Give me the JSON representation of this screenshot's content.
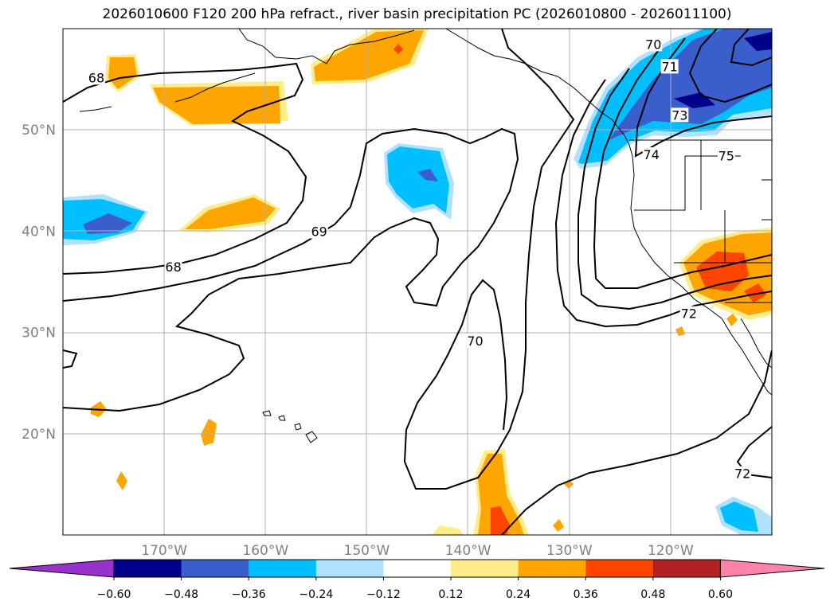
{
  "title": "2026010600 F120 200 hPa refract., river basin precipitation PC (2026010800 - 2026011100)",
  "map": {
    "projection": "PlateCarree",
    "lon_range": [
      -180,
      -110
    ],
    "lat_range": [
      10,
      60
    ],
    "grid": true,
    "lat_ticks": [
      {
        "value": 50,
        "label": "50°N"
      },
      {
        "value": 40,
        "label": "40°N"
      },
      {
        "value": 30,
        "label": "30°N"
      },
      {
        "value": 20,
        "label": "20°N"
      }
    ],
    "lon_ticks": [
      {
        "value": -170,
        "label": "170°W"
      },
      {
        "value": -160,
        "label": "160°W"
      },
      {
        "value": -150,
        "label": "150°W"
      },
      {
        "value": -140,
        "label": "140°W"
      },
      {
        "value": -130,
        "label": "130°W"
      },
      {
        "value": -120,
        "label": "120°W"
      }
    ],
    "contour_labels": [
      {
        "text": "68",
        "lon": -176.7,
        "lat": 55.1
      },
      {
        "text": "68",
        "lon": -169.1,
        "lat": 36.4
      },
      {
        "text": "69",
        "lon": -154.7,
        "lat": 39.9
      },
      {
        "text": "70",
        "lon": -139.3,
        "lat": 29.1
      },
      {
        "text": "70",
        "lon": -121.7,
        "lat": 58.4
      },
      {
        "text": "71",
        "lon": -120.1,
        "lat": 56.2
      },
      {
        "text": "73",
        "lon": -119.1,
        "lat": 51.4
      },
      {
        "text": "74",
        "lon": -121.9,
        "lat": 47.5
      },
      {
        "text": "75",
        "lon": -114.5,
        "lat": 47.4
      },
      {
        "text": "72",
        "lon": -118.2,
        "lat": 31.8
      },
      {
        "text": "72",
        "lon": -112.9,
        "lat": 16.0
      }
    ]
  },
  "colorbar": {
    "colors": [
      "#9932cc",
      "#00008b",
      "#3a5fcd",
      "#00bfff",
      "#b0e2ff",
      "#ffffff",
      "#ffec8b",
      "#ffa500",
      "#ff4500",
      "#b22222",
      "#ff83a8"
    ],
    "ticks": [
      "−0.60",
      "−0.48",
      "−0.36",
      "−0.24",
      "−0.12",
      "0.12",
      "0.24",
      "0.36",
      "0.48",
      "0.60"
    ]
  }
}
